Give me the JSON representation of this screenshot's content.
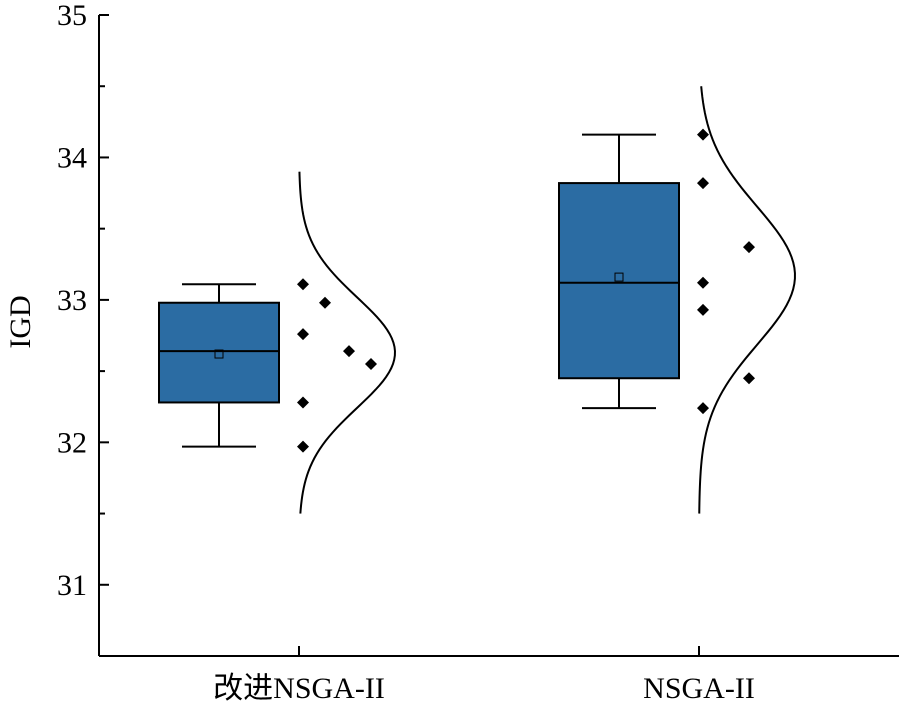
{
  "chart_data": {
    "type": "box",
    "ylabel": "IGD",
    "ylim": [
      30.5,
      35
    ],
    "yticks": [
      31,
      32,
      33,
      34,
      35
    ],
    "categories": [
      "改进NSGA-II",
      "NSGA-II"
    ],
    "box_color": "#2b6ca3",
    "series": [
      {
        "category": "改进NSGA-II",
        "whisker_low": 31.97,
        "q1": 32.28,
        "median": 32.64,
        "mean": 32.62,
        "q3": 32.98,
        "whisker_high": 33.11,
        "points": [
          33.11,
          32.98,
          32.76,
          32.64,
          32.55,
          32.28,
          31.97
        ],
        "curve_range": [
          31.5,
          33.9
        ],
        "curve_peak": 32.63
      },
      {
        "category": "NSGA-II",
        "whisker_low": 32.24,
        "q1": 32.45,
        "median": 33.12,
        "mean": 33.16,
        "q3": 33.82,
        "whisker_high": 34.16,
        "points": [
          34.16,
          33.82,
          33.37,
          33.12,
          32.93,
          32.45,
          32.24
        ],
        "curve_range": [
          31.5,
          34.5
        ],
        "curve_peak": 33.17
      }
    ]
  }
}
